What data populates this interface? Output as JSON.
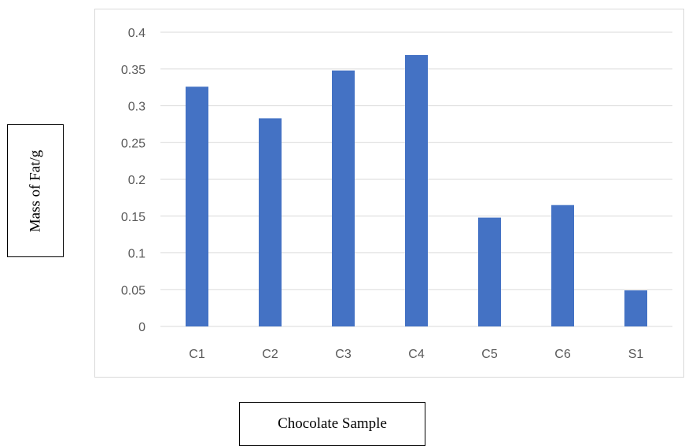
{
  "chart_data": {
    "type": "bar",
    "categories": [
      "C1",
      "C2",
      "C3",
      "C4",
      "C5",
      "C6",
      "S1"
    ],
    "values": [
      0.326,
      0.283,
      0.348,
      0.369,
      0.148,
      0.165,
      0.049
    ],
    "ylim": [
      0,
      0.4
    ],
    "yticks": [
      "0",
      "0.05",
      "0.1",
      "0.15",
      "0.2",
      "0.25",
      "0.3",
      "0.35",
      "0.4"
    ],
    "xlabel": "Chocolate Sample",
    "ylabel": "Mass of Fat/g",
    "bar_color": "#4472c4",
    "grid": true
  }
}
